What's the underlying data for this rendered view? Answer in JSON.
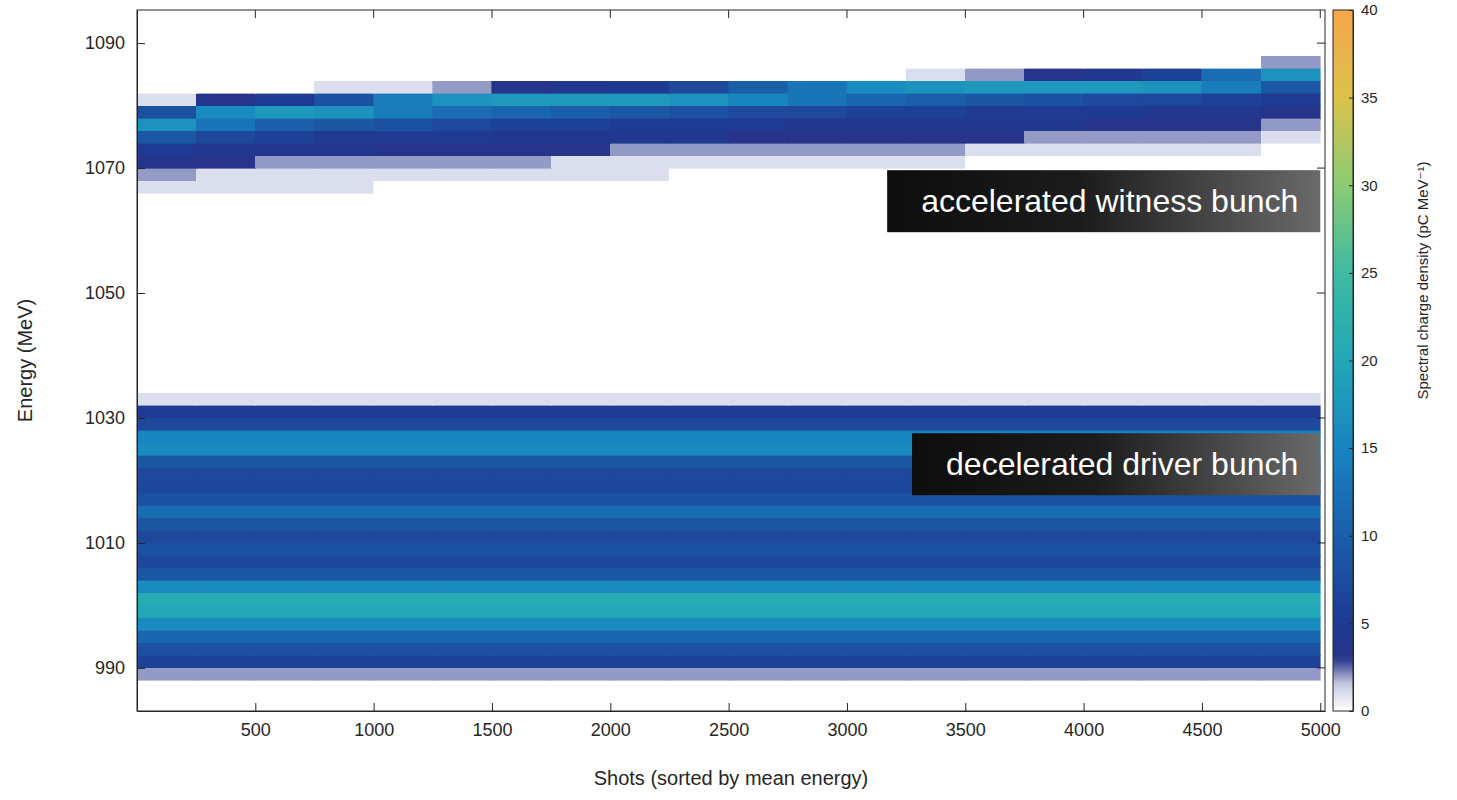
{
  "chart_data": {
    "type": "heatmap",
    "xlabel": "Shots (sorted by mean energy)",
    "ylabel": "Energy (MeV)",
    "xlim": [
      0,
      5020
    ],
    "ylim": [
      983.1,
      1095.3
    ],
    "xticks": [
      500,
      1000,
      1500,
      2000,
      2500,
      3000,
      3500,
      4000,
      4500,
      5000
    ],
    "yticks": [
      990,
      1010,
      1030,
      1050,
      1070,
      1090
    ],
    "x_edges": [
      0,
      250,
      500,
      750,
      1000,
      1250,
      1500,
      1750,
      2000,
      2250,
      2500,
      2750,
      3000,
      3250,
      3500,
      3750,
      4000,
      4250,
      4500,
      4750,
      5000
    ],
    "y_edges": [
      984,
      986,
      988,
      990,
      992,
      994,
      996,
      998,
      1000,
      1002,
      1004,
      1006,
      1008,
      1010,
      1012,
      1014,
      1016,
      1018,
      1020,
      1022,
      1024,
      1026,
      1028,
      1030,
      1032,
      1034,
      1036,
      1038,
      1040,
      1042,
      1044,
      1046,
      1048,
      1050,
      1052,
      1054,
      1056,
      1058,
      1060,
      1062,
      1064,
      1066,
      1068,
      1070,
      1072,
      1074,
      1076,
      1078,
      1080,
      1082,
      1084,
      1086,
      1088,
      1090,
      1092,
      1094
    ],
    "z": [
      [
        0,
        0,
        0,
        0,
        0,
        0,
        0,
        0,
        0,
        0,
        0,
        0,
        0,
        0,
        0,
        0,
        0,
        0,
        0,
        0
      ],
      [
        0,
        0,
        0,
        0,
        0,
        0,
        0,
        0,
        0,
        0,
        0,
        0,
        0,
        0,
        0,
        0,
        0,
        0,
        0,
        0
      ],
      [
        2,
        2,
        2,
        2,
        2,
        2,
        2,
        2,
        2,
        2,
        2,
        2,
        2,
        2,
        2,
        2,
        2,
        2,
        2,
        2
      ],
      [
        6,
        6,
        6,
        6,
        6,
        6,
        6,
        6,
        6,
        6,
        6,
        6,
        6,
        6,
        6,
        6,
        6,
        6,
        6,
        6
      ],
      [
        8,
        8,
        8,
        8,
        8,
        8,
        8,
        8,
        8,
        8,
        8,
        8,
        8,
        8,
        8,
        8,
        8,
        8,
        8,
        8
      ],
      [
        11,
        11,
        11,
        11,
        11,
        11,
        11,
        11,
        11,
        11,
        11,
        11,
        11,
        11,
        11,
        11,
        11,
        11,
        11,
        11
      ],
      [
        16,
        16,
        16,
        16,
        16,
        16,
        16,
        16,
        16,
        16,
        16,
        16,
        16,
        16,
        16,
        16,
        16,
        16,
        16,
        16
      ],
      [
        20,
        20,
        20,
        20,
        20,
        20,
        20,
        20,
        20,
        20,
        20,
        20,
        20,
        20,
        20,
        20,
        20,
        20,
        20,
        20
      ],
      [
        21,
        21,
        21,
        21,
        21,
        21,
        21,
        21,
        21,
        21,
        21,
        21,
        21,
        21,
        21,
        21,
        21,
        21,
        21,
        21
      ],
      [
        16,
        16,
        16,
        16,
        16,
        16,
        16,
        16,
        16,
        16,
        16,
        16,
        16,
        16,
        16,
        16,
        16,
        16,
        16,
        16
      ],
      [
        9,
        9,
        9,
        9,
        9,
        9,
        9,
        9,
        9,
        9,
        9,
        9,
        9,
        9,
        9,
        9,
        9,
        9,
        9,
        9
      ],
      [
        7,
        7,
        7,
        7,
        7,
        7,
        7,
        7,
        7,
        7,
        7,
        7,
        7,
        7,
        7,
        7,
        7,
        7,
        7,
        7
      ],
      [
        8,
        8,
        8,
        8,
        8,
        8,
        8,
        8,
        8,
        8,
        8,
        8,
        8,
        8,
        8,
        8,
        8,
        8,
        8,
        8
      ],
      [
        7,
        7,
        7,
        7,
        7,
        7,
        7,
        7,
        7,
        7,
        7,
        7,
        7,
        7,
        7,
        7,
        7,
        7,
        7,
        7
      ],
      [
        9,
        9,
        9,
        9,
        9,
        9,
        9,
        9,
        9,
        9,
        9,
        9,
        9,
        9,
        9,
        9,
        9,
        9,
        9,
        9
      ],
      [
        12,
        12,
        12,
        12,
        12,
        12,
        12,
        12,
        12,
        12,
        12,
        12,
        12,
        12,
        12,
        12,
        12,
        12,
        12,
        12
      ],
      [
        8,
        8,
        8,
        8,
        8,
        8,
        8,
        8,
        8,
        8,
        8,
        8,
        8,
        8,
        8,
        8,
        8,
        8,
        8,
        8
      ],
      [
        7,
        7,
        7,
        7,
        7,
        7,
        7,
        7,
        7,
        7,
        7,
        7,
        7,
        7,
        7,
        7,
        7,
        7,
        7,
        7
      ],
      [
        7,
        7,
        7,
        7,
        7,
        7,
        7,
        7,
        7,
        7,
        7,
        7,
        7,
        7,
        7,
        7,
        7,
        7,
        7,
        7
      ],
      [
        9,
        9,
        9,
        9,
        9,
        9,
        9,
        9,
        9,
        9,
        9,
        9,
        9,
        9,
        9,
        9,
        9,
        9,
        9,
        9
      ],
      [
        16,
        16,
        16,
        16,
        16,
        16,
        16,
        16,
        16,
        16,
        16,
        16,
        16,
        16,
        16,
        16,
        16,
        16,
        16,
        16
      ],
      [
        15,
        15,
        15,
        15,
        15,
        15,
        15,
        15,
        15,
        15,
        15,
        15,
        15,
        15,
        15,
        15,
        15,
        15,
        15,
        15
      ],
      [
        7,
        7,
        7,
        7,
        7,
        7,
        7,
        7,
        7,
        7,
        7,
        7,
        7,
        7,
        7,
        7,
        7,
        7,
        7,
        7
      ],
      [
        5,
        5,
        5,
        5,
        5,
        5,
        5,
        5,
        5,
        5,
        5,
        5,
        5,
        5,
        5,
        5,
        5,
        5,
        5,
        5
      ],
      [
        1,
        1,
        1,
        1,
        1,
        1,
        1,
        1,
        1,
        1,
        1,
        1,
        1,
        1,
        1,
        1,
        1,
        1,
        1,
        1
      ],
      [
        0,
        0,
        0,
        0,
        0,
        0,
        0,
        0,
        0,
        0,
        0,
        0,
        0,
        0,
        0,
        0,
        0,
        0,
        0,
        0
      ],
      [
        0,
        0,
        0,
        0,
        0,
        0,
        0,
        0,
        0,
        0,
        0,
        0,
        0,
        0,
        0,
        0,
        0,
        0,
        0,
        0
      ],
      [
        0,
        0,
        0,
        0,
        0,
        0,
        0,
        0,
        0,
        0,
        0,
        0,
        0,
        0,
        0,
        0,
        0,
        0,
        0,
        0
      ],
      [
        0,
        0,
        0,
        0,
        0,
        0,
        0,
        0,
        0,
        0,
        0,
        0,
        0,
        0,
        0,
        0,
        0,
        0,
        0,
        0
      ],
      [
        0,
        0,
        0,
        0,
        0,
        0,
        0,
        0,
        0,
        0,
        0,
        0,
        0,
        0,
        0,
        0,
        0,
        0,
        0,
        0
      ],
      [
        0,
        0,
        0,
        0,
        0,
        0,
        0,
        0,
        0,
        0,
        0,
        0,
        0,
        0,
        0,
        0,
        0,
        0,
        0,
        0
      ],
      [
        0,
        0,
        0,
        0,
        0,
        0,
        0,
        0,
        0,
        0,
        0,
        0,
        0,
        0,
        0,
        0,
        0,
        0,
        0,
        0
      ],
      [
        0,
        0,
        0,
        0,
        0,
        0,
        0,
        0,
        0,
        0,
        0,
        0,
        0,
        0,
        0,
        0,
        0,
        0,
        0,
        0
      ],
      [
        0,
        0,
        0,
        0,
        0,
        0,
        0,
        0,
        0,
        0,
        0,
        0,
        0,
        0,
        0,
        0,
        0,
        0,
        0,
        0
      ],
      [
        0,
        0,
        0,
        0,
        0,
        0,
        0,
        0,
        0,
        0,
        0,
        0,
        0,
        0,
        0,
        0,
        0,
        0,
        0,
        0
      ],
      [
        0,
        0,
        0,
        0,
        0,
        0,
        0,
        0,
        0,
        0,
        0,
        0,
        0,
        0,
        0,
        0,
        0,
        0,
        0,
        0
      ],
      [
        0,
        0,
        0,
        0,
        0,
        0,
        0,
        0,
        0,
        0,
        0,
        0,
        0,
        0,
        0,
        0,
        0,
        0,
        0,
        0
      ],
      [
        0,
        0,
        0,
        0,
        0,
        0,
        0,
        0,
        0,
        0,
        0,
        0,
        0,
        0,
        0,
        0,
        0,
        0,
        0,
        0
      ],
      [
        0,
        0,
        0,
        0,
        0,
        0,
        0,
        0,
        0,
        0,
        0,
        0,
        0,
        0,
        0,
        0,
        0,
        0,
        0,
        0
      ],
      [
        0,
        0,
        0,
        0,
        0,
        0,
        0,
        0,
        0,
        0,
        0,
        0,
        0,
        0,
        0,
        0,
        0,
        0,
        0,
        0
      ],
      [
        0,
        0,
        0,
        0,
        0,
        0,
        0,
        0,
        0,
        0,
        0,
        0,
        0,
        0,
        0,
        0,
        0,
        0,
        0,
        0
      ],
      [
        1,
        1,
        1,
        1,
        0,
        0,
        0,
        0,
        0,
        0,
        0,
        0,
        0,
        0,
        0,
        0,
        0,
        0,
        0,
        0
      ],
      [
        2,
        1,
        1,
        1,
        1,
        1,
        1,
        1,
        1,
        0,
        0,
        0,
        0,
        0,
        0,
        0,
        0,
        0,
        0,
        0
      ],
      [
        3,
        3,
        2,
        2,
        2,
        2,
        2,
        1,
        1,
        1,
        1,
        1,
        1,
        1,
        0,
        0,
        0,
        0,
        0,
        0
      ],
      [
        5,
        4,
        4,
        4,
        3,
        3,
        3,
        3,
        2,
        2,
        2,
        2,
        2,
        2,
        1,
        1,
        1,
        1,
        1,
        0
      ],
      [
        9,
        7,
        6,
        5,
        5,
        5,
        4,
        4,
        4,
        4,
        3,
        3,
        3,
        3,
        3,
        2,
        2,
        2,
        2,
        1
      ],
      [
        17,
        13,
        10,
        9,
        8,
        7,
        6,
        6,
        5,
        5,
        5,
        4,
        4,
        4,
        4,
        4,
        3,
        3,
        3,
        2
      ],
      [
        8,
        16,
        18,
        17,
        14,
        12,
        11,
        10,
        9,
        8,
        7,
        7,
        6,
        6,
        5,
        5,
        5,
        4,
        4,
        3
      ],
      [
        1,
        3,
        5,
        8,
        14,
        17,
        18,
        18,
        18,
        17,
        15,
        13,
        11,
        10,
        9,
        8,
        7,
        7,
        6,
        5
      ],
      [
        0,
        0,
        0,
        1,
        1,
        2,
        3,
        4,
        5,
        7,
        10,
        13,
        16,
        17,
        18,
        18,
        18,
        17,
        14,
        9
      ],
      [
        0,
        0,
        0,
        0,
        0,
        0,
        0,
        0,
        0,
        0,
        0,
        0,
        0,
        1,
        2,
        3,
        4,
        6,
        12,
        17
      ],
      [
        0,
        0,
        0,
        0,
        0,
        0,
        0,
        0,
        0,
        0,
        0,
        0,
        0,
        0,
        0,
        0,
        0,
        0,
        0,
        2
      ],
      [
        0,
        0,
        0,
        0,
        0,
        0,
        0,
        0,
        0,
        0,
        0,
        0,
        0,
        0,
        0,
        0,
        0,
        0,
        0,
        0
      ],
      [
        0,
        0,
        0,
        0,
        0,
        0,
        0,
        0,
        0,
        0,
        0,
        0,
        0,
        0,
        0,
        0,
        0,
        0,
        0,
        0
      ],
      [
        0,
        0,
        0,
        0,
        0,
        0,
        0,
        0,
        0,
        0,
        0,
        0,
        0,
        0,
        0,
        0,
        0,
        0,
        0,
        0
      ]
    ],
    "colorbar": {
      "label": "Spectral charge density (pC MeV⁻¹)",
      "range": [
        0,
        40
      ],
      "ticks": [
        0,
        5,
        10,
        15,
        20,
        25,
        30,
        35,
        40
      ]
    },
    "annotations": [
      {
        "text": "accelerated witness bunch",
        "x": 5000,
        "y": 1064.7
      },
      {
        "text": "decelerated driver bunch",
        "x": 5000,
        "y": 1022.6
      }
    ]
  }
}
